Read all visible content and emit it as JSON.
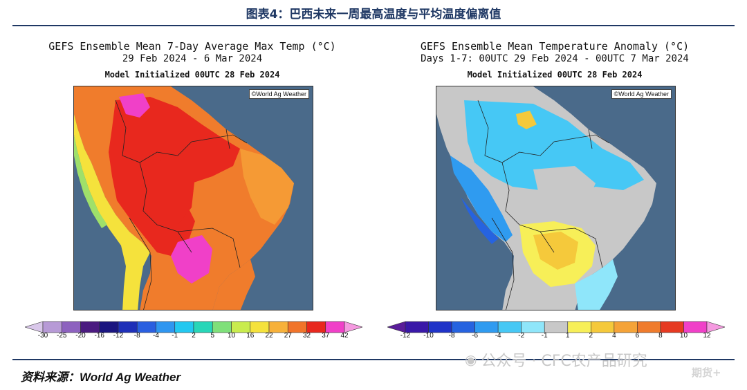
{
  "figure_title": "图表4：巴西未来一周最高温度与平均温度偏离值",
  "source": "资料来源：World Ag Weather",
  "watermark": "公众号 · CFC农产品研究",
  "watermark_small": "期货+",
  "left_map": {
    "title": "GEFS Ensemble Mean 7-Day Average Max Temp (°C)",
    "period": "29 Feb 2024 - 6 Mar 2024",
    "init": "Model Initialized 00UTC 28 Feb 2024",
    "credit": "©World Ag Weather",
    "colorbar": {
      "ticks": [
        "-30",
        "-25",
        "-20",
        "-16",
        "-12",
        "-8",
        "-4",
        "-1",
        "2",
        "5",
        "10",
        "16",
        "22",
        "27",
        "32",
        "37",
        "42"
      ],
      "colors": [
        "#d9c7ea",
        "#b79ad6",
        "#8d62bf",
        "#4b1b80",
        "#1a1580",
        "#1e2fb8",
        "#2a5fe0",
        "#2f96f0",
        "#23c8f0",
        "#28d6b8",
        "#7fe07a",
        "#c9ec4e",
        "#f5e23c",
        "#f7b13a",
        "#f1742a",
        "#e8281e",
        "#f040c8",
        "#f59ae0"
      ]
    }
  },
  "right_map": {
    "title": "GEFS Ensemble Mean Temperature Anomaly (°C)",
    "period": "Days 1-7: 00UTC 29 Feb 2024 - 00UTC 7 Mar 2024",
    "init": "Model Initialized 00UTC 28 Feb 2024",
    "credit": "©World Ag Weather",
    "colorbar": {
      "ticks": [
        "-12",
        "-10",
        "-8",
        "-6",
        "-4",
        "-2",
        "-1",
        "1",
        "2",
        "4",
        "6",
        "8",
        "10",
        "12"
      ],
      "colors": [
        "#5a1d9a",
        "#3a19a8",
        "#1f33c8",
        "#2663e0",
        "#2f9bf0",
        "#46c8f5",
        "#8fe6fa",
        "#c8c8c8",
        "#f7ef58",
        "#f5c93b",
        "#f5a338",
        "#ef7b2c",
        "#e63a22",
        "#f040c8",
        "#f59ae0"
      ]
    }
  }
}
